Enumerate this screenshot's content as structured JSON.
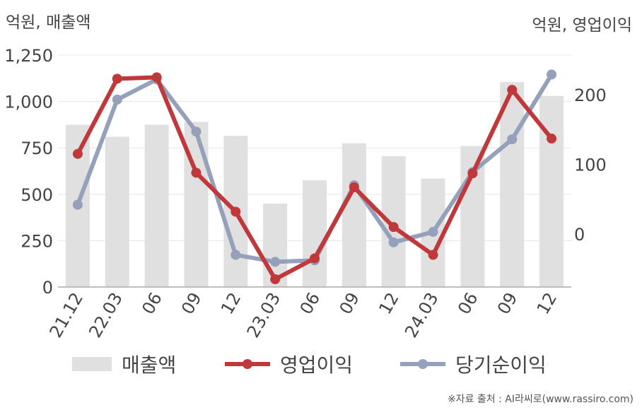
{
  "units": {
    "left": "억원, 매출액",
    "right": "억원, 영업이익"
  },
  "source": "※자료 출처 : AI라씨로(www.rassiro.com)",
  "chart_data": {
    "type": "bar+line",
    "categories": [
      "21.12",
      "22.03",
      "06",
      "09",
      "12",
      "23.03",
      "06",
      "09",
      "12",
      "24.03",
      "06",
      "09",
      "12"
    ],
    "left_axis": {
      "ticks": [
        "0",
        "250",
        "500",
        "750",
        "1,000",
        "1,250"
      ],
      "range": [
        0,
        1250
      ]
    },
    "right_axis": {
      "ticks": [
        "0",
        "100",
        "200"
      ],
      "range": [
        -75,
        260
      ]
    },
    "grid": true,
    "legend_position": "bottom",
    "series": [
      {
        "name": "매출액",
        "type": "bar",
        "axis": "left",
        "color": "#e0e0e0",
        "values": [
          875,
          810,
          875,
          890,
          815,
          450,
          575,
          775,
          705,
          585,
          760,
          1105,
          1030
        ]
      },
      {
        "name": "영업이익",
        "type": "line",
        "axis": "right",
        "color": "#c0383a",
        "values": [
          115,
          223,
          225,
          88,
          32,
          -65,
          -35,
          67,
          10,
          -30,
          87,
          207,
          137
        ]
      },
      {
        "name": "당기순이익",
        "type": "line",
        "axis": "right",
        "color": "#95a0ba",
        "values": [
          42,
          193,
          222,
          147,
          -30,
          -40,
          -38,
          70,
          -12,
          3,
          89,
          136,
          229
        ]
      }
    ]
  }
}
